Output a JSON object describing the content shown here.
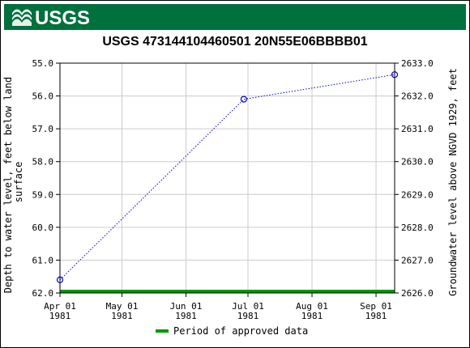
{
  "brand": {
    "logo_text": "USGS",
    "color": "#00703c"
  },
  "chart_data": {
    "type": "line",
    "title": "USGS 473144104460501 20N55E06BBBB01",
    "ylabel_left": "Depth to water level, feet below land surface",
    "ylabel_right": "Groundwater level above NGVD 1929, feet",
    "ylim_left": [
      55.0,
      62.0
    ],
    "ylim_right": [
      2626.0,
      2633.0
    ],
    "left_inverted": true,
    "xlim": [
      "1981-04-01",
      "1981-09-10"
    ],
    "x_ticks": [
      {
        "date": "1981-04-01",
        "label1": "Apr 01",
        "label2": "1981"
      },
      {
        "date": "1981-05-01",
        "label1": "May 01",
        "label2": "1981"
      },
      {
        "date": "1981-06-01",
        "label1": "Jun 01",
        "label2": "1981"
      },
      {
        "date": "1981-07-01",
        "label1": "Jul 01",
        "label2": "1981"
      },
      {
        "date": "1981-08-01",
        "label1": "Aug 01",
        "label2": "1981"
      },
      {
        "date": "1981-09-01",
        "label1": "Sep 01",
        "label2": "1981"
      }
    ],
    "y_ticks_left": [
      "55.0",
      "56.0",
      "57.0",
      "58.0",
      "59.0",
      "60.0",
      "61.0",
      "62.0"
    ],
    "y_ticks_right": [
      "2633.0",
      "2632.0",
      "2631.0",
      "2630.0",
      "2629.0",
      "2628.0",
      "2627.0",
      "2626.0"
    ],
    "series": [
      {
        "x": [
          "1981-04-01",
          "1981-06-29",
          "1981-09-10"
        ],
        "y": [
          61.6,
          56.1,
          55.35
        ],
        "color": "#0000cc",
        "line_style": "dotted",
        "marker": "open-circle"
      }
    ],
    "approved_period": {
      "start": "1981-04-01",
      "end": "1981-09-10",
      "color": "#009900"
    },
    "legend": {
      "label": "Period of approved data",
      "placement": "bottom-center"
    },
    "grid": true
  }
}
